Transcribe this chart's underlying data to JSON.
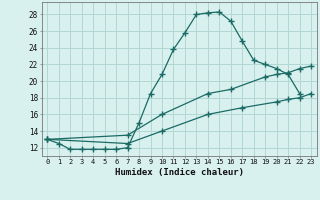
{
  "xlabel": "Humidex (Indice chaleur)",
  "background_color": "#d8f0ee",
  "grid_color": "#b2d8d4",
  "line_color": "#1a6b65",
  "xlim": [
    -0.5,
    23.5
  ],
  "ylim": [
    11.0,
    29.5
  ],
  "yticks": [
    12,
    14,
    16,
    18,
    20,
    22,
    24,
    26,
    28
  ],
  "xticks": [
    0,
    1,
    2,
    3,
    4,
    5,
    6,
    7,
    8,
    9,
    10,
    11,
    12,
    13,
    14,
    15,
    16,
    17,
    18,
    19,
    20,
    21,
    22,
    23
  ],
  "line1_x": [
    0,
    1,
    2,
    3,
    4,
    5,
    6,
    7,
    8,
    9,
    10,
    11,
    12,
    13,
    14,
    15,
    16,
    17,
    18,
    19,
    20,
    21,
    22
  ],
  "line1_y": [
    13.0,
    12.5,
    11.8,
    11.8,
    11.8,
    11.8,
    11.8,
    12.0,
    15.0,
    18.5,
    20.8,
    23.8,
    25.8,
    28.0,
    28.2,
    28.3,
    27.2,
    24.8,
    22.5,
    22.0,
    21.5,
    20.8,
    18.5
  ],
  "line2_x": [
    0,
    7,
    10,
    14,
    16,
    19,
    20,
    21,
    22,
    23
  ],
  "line2_y": [
    13.0,
    13.5,
    16.0,
    18.5,
    19.0,
    20.5,
    20.8,
    21.0,
    21.5,
    21.8
  ],
  "line3_x": [
    0,
    7,
    10,
    14,
    17,
    20,
    21,
    22,
    23
  ],
  "line3_y": [
    13.0,
    12.5,
    14.0,
    16.0,
    16.8,
    17.5,
    17.8,
    18.0,
    18.5
  ]
}
